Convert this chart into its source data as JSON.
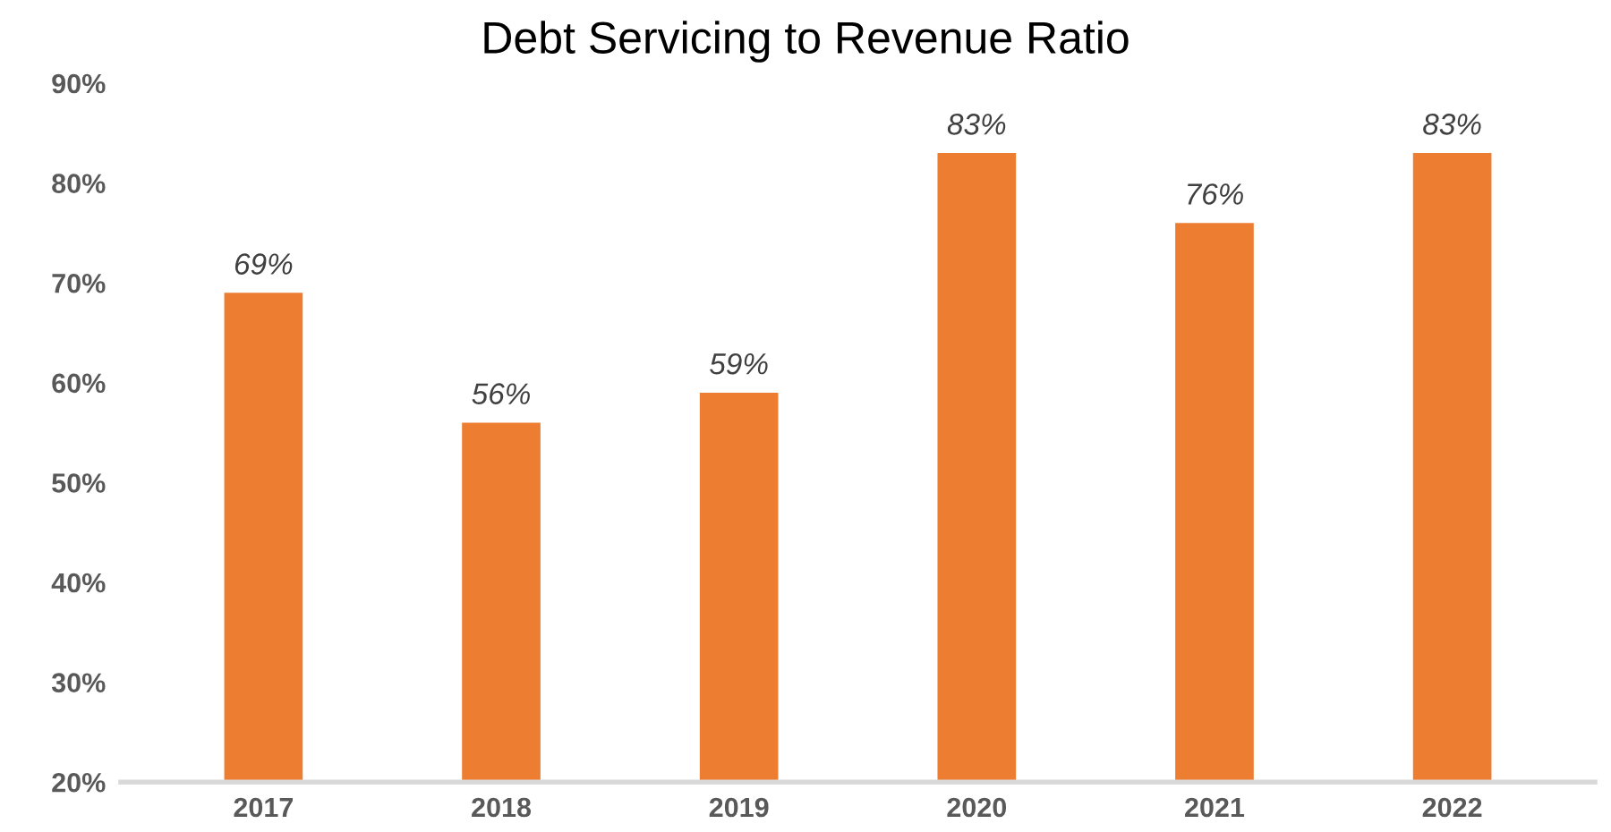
{
  "chart_data": {
    "type": "bar",
    "title": "Debt Servicing to Revenue Ratio",
    "categories": [
      "2017",
      "2018",
      "2019",
      "2020",
      "2021",
      "2022"
    ],
    "values": [
      69,
      56,
      59,
      83,
      76,
      83
    ],
    "value_labels": [
      "69%",
      "56%",
      "59%",
      "83%",
      "76%",
      "83%"
    ],
    "color": "#ed7d31",
    "ylim": [
      20,
      90
    ],
    "yticks": [
      {
        "value": 20,
        "label": "20%"
      },
      {
        "value": 30,
        "label": "30%"
      },
      {
        "value": 40,
        "label": "40%"
      },
      {
        "value": 50,
        "label": "50%"
      },
      {
        "value": 60,
        "label": "60%"
      },
      {
        "value": 70,
        "label": "70%"
      },
      {
        "value": 80,
        "label": "80%"
      },
      {
        "value": 90,
        "label": "90%"
      }
    ],
    "grid": false,
    "legend": false
  }
}
